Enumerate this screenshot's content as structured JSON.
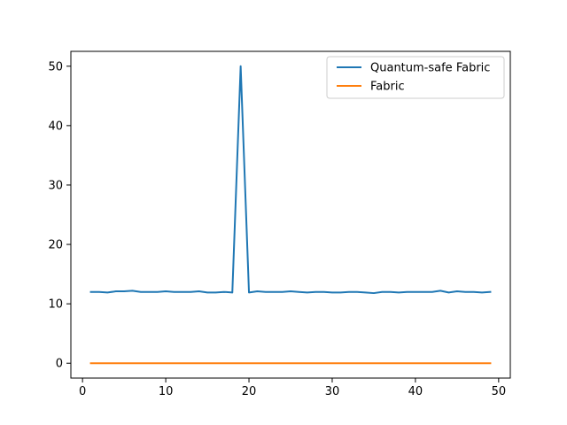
{
  "chart_data": {
    "type": "line",
    "title": "",
    "xlabel": "",
    "ylabel": "",
    "xlim": [
      -1.4,
      51.4
    ],
    "ylim": [
      -2.5,
      52.5
    ],
    "xticks": [
      0,
      10,
      20,
      30,
      40,
      50
    ],
    "yticks": [
      0,
      10,
      20,
      30,
      40,
      50
    ],
    "grid": false,
    "legend_position": "upper right",
    "series": [
      {
        "name": "Quantum-safe Fabric",
        "color": "#1f77b4",
        "x": [
          1,
          2,
          3,
          4,
          5,
          6,
          7,
          8,
          9,
          10,
          11,
          12,
          13,
          14,
          15,
          16,
          17,
          18,
          19,
          20,
          21,
          22,
          23,
          24,
          25,
          26,
          27,
          28,
          29,
          30,
          31,
          32,
          33,
          34,
          35,
          36,
          37,
          38,
          39,
          40,
          41,
          42,
          43,
          44,
          45,
          46,
          47,
          48,
          49
        ],
        "y": [
          12.0,
          12.0,
          11.9,
          12.1,
          12.1,
          12.2,
          12.0,
          12.0,
          12.0,
          12.1,
          12.0,
          12.0,
          12.0,
          12.1,
          11.9,
          11.9,
          12.0,
          11.9,
          50.0,
          11.9,
          12.1,
          12.0,
          12.0,
          12.0,
          12.1,
          12.0,
          11.9,
          12.0,
          12.0,
          11.9,
          11.9,
          12.0,
          12.0,
          11.9,
          11.8,
          12.0,
          12.0,
          11.9,
          12.0,
          12.0,
          12.0,
          12.0,
          12.2,
          11.9,
          12.1,
          12.0,
          12.0,
          11.9,
          12.0
        ]
      },
      {
        "name": "Fabric",
        "color": "#ff7f0e",
        "x": [
          1,
          2,
          3,
          4,
          5,
          6,
          7,
          8,
          9,
          10,
          11,
          12,
          13,
          14,
          15,
          16,
          17,
          18,
          19,
          20,
          21,
          22,
          23,
          24,
          25,
          26,
          27,
          28,
          29,
          30,
          31,
          32,
          33,
          34,
          35,
          36,
          37,
          38,
          39,
          40,
          41,
          42,
          43,
          44,
          45,
          46,
          47,
          48,
          49
        ],
        "y": [
          0,
          0,
          0,
          0,
          0,
          0,
          0,
          0,
          0,
          0,
          0,
          0,
          0,
          0,
          0,
          0,
          0,
          0,
          0,
          0,
          0,
          0,
          0,
          0,
          0,
          0,
          0,
          0,
          0,
          0,
          0,
          0,
          0,
          0,
          0,
          0,
          0,
          0,
          0,
          0,
          0,
          0,
          0,
          0,
          0,
          0,
          0,
          0,
          0
        ]
      }
    ]
  }
}
